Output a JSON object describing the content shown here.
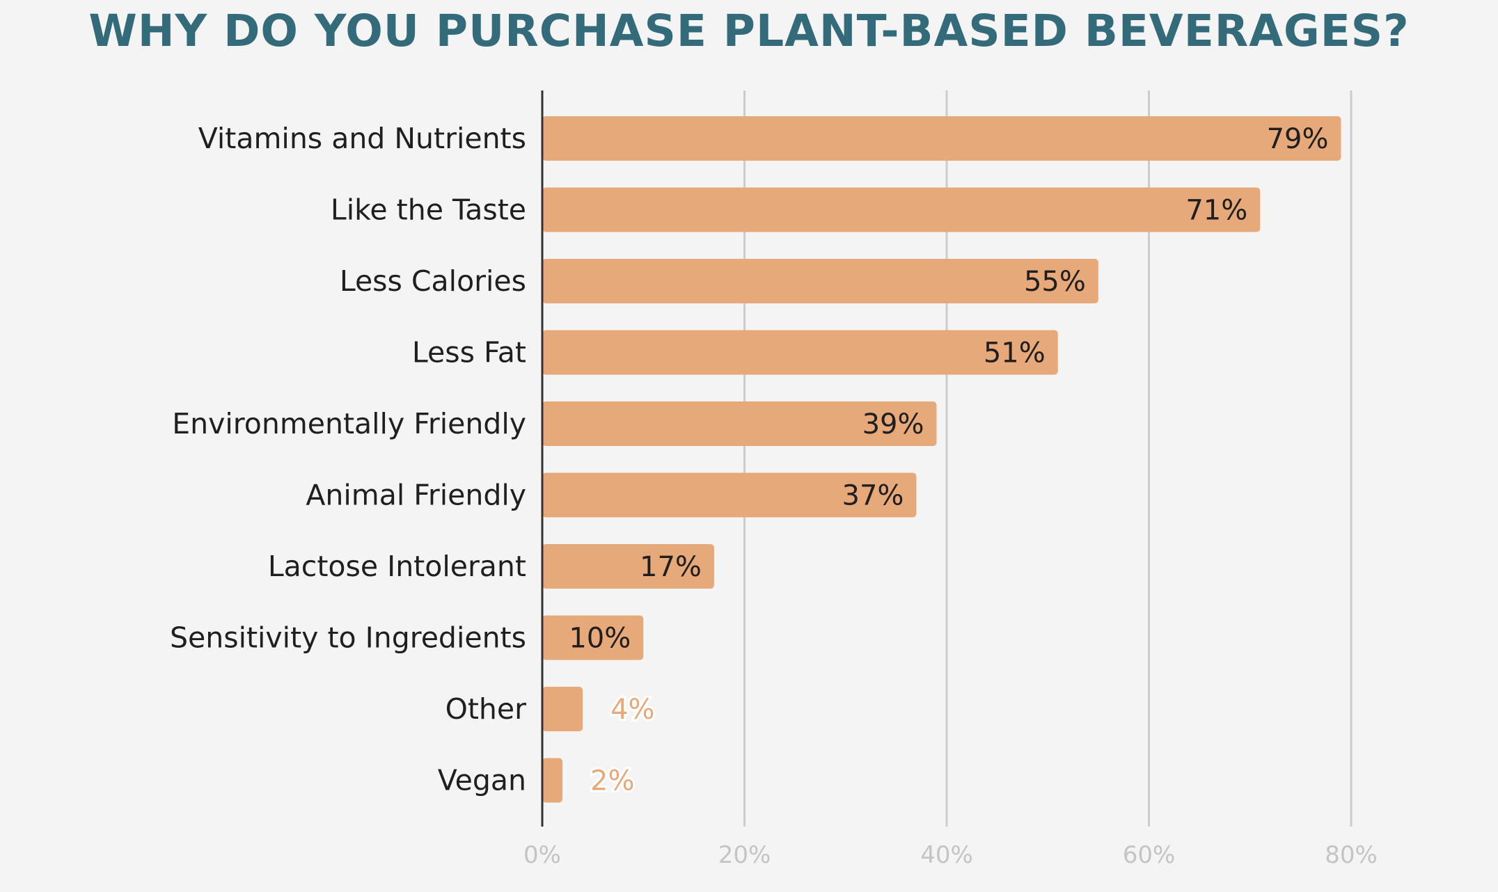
{
  "chart_data": {
    "type": "bar",
    "orientation": "horizontal",
    "title": "WHY DO YOU PURCHASE PLANT-BASED BEVERAGES?",
    "categories": [
      "Vitamins and Nutrients",
      "Like the Taste",
      "Less Calories",
      "Less Fat",
      "Environmentally Friendly",
      "Animal Friendly",
      "Lactose Intolerant",
      "Sensitivity to Ingredients",
      "Other",
      "Vegan"
    ],
    "values": [
      79,
      71,
      55,
      51,
      39,
      37,
      17,
      10,
      4,
      2
    ],
    "value_labels": [
      "79%",
      "71%",
      "55%",
      "51%",
      "39%",
      "37%",
      "17%",
      "10%",
      "4%",
      "2%"
    ],
    "xticks": [
      "0%",
      "20%",
      "40%",
      "60%",
      "80%"
    ],
    "xlim": [
      0,
      80
    ],
    "xlabel": "",
    "ylabel": "",
    "grid": "vertical",
    "legend": "none",
    "colors": {
      "bar": "#e8a97a",
      "title": "#336b7a",
      "grid": "#cccccc",
      "axis": "#333333",
      "tick_label": "#c4c4c4",
      "background": "#f4f4f4"
    }
  }
}
